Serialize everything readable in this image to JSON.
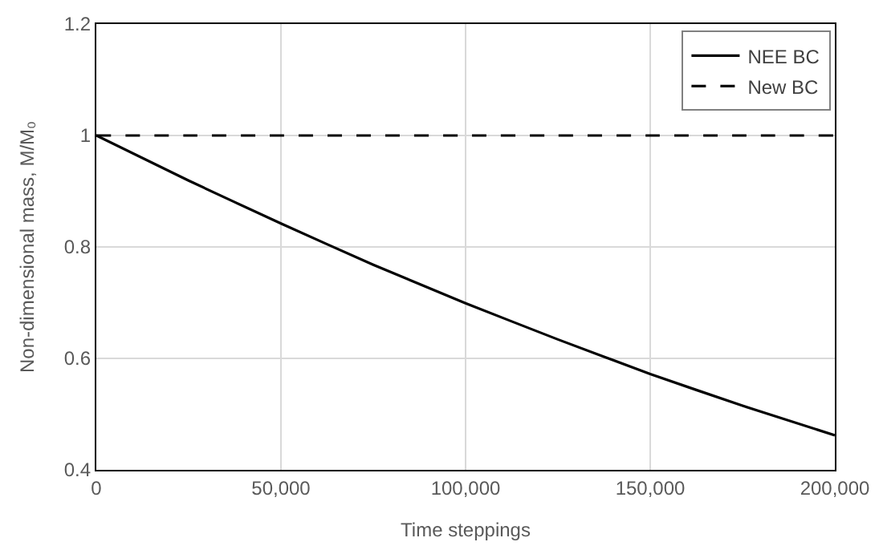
{
  "chart_data": {
    "type": "line",
    "xlabel": "Time steppings",
    "ylabel": "Non-dimensional mass, M/M₀",
    "x": [
      0,
      25000,
      50000,
      75000,
      100000,
      125000,
      150000,
      175000,
      200000
    ],
    "series": [
      {
        "name": "NEE BC",
        "color": "#000000",
        "line_style": "solid",
        "values": [
          1,
          0.919,
          0.842,
          0.768,
          0.699,
          0.634,
          0.572,
          0.515,
          0.462
        ]
      },
      {
        "name": "New BC",
        "color": "#000000",
        "line_style": "dashed",
        "values": [
          1,
          1,
          1,
          1,
          1,
          1,
          1,
          1,
          1
        ]
      }
    ],
    "xlim": [
      0,
      200000
    ],
    "ylim": [
      0.4,
      1.2
    ],
    "xticks": [
      0,
      {
        "value": 50000,
        "label": "50,000"
      },
      {
        "value": 100000,
        "label": "100,000"
      },
      {
        "value": 150000,
        "label": "150,000"
      },
      {
        "value": 200000,
        "label": "200,000"
      }
    ],
    "yticks": [
      0.4,
      0.6,
      0.8,
      1,
      1.2
    ],
    "grid": true,
    "legend": "top right",
    "marker": "none"
  }
}
